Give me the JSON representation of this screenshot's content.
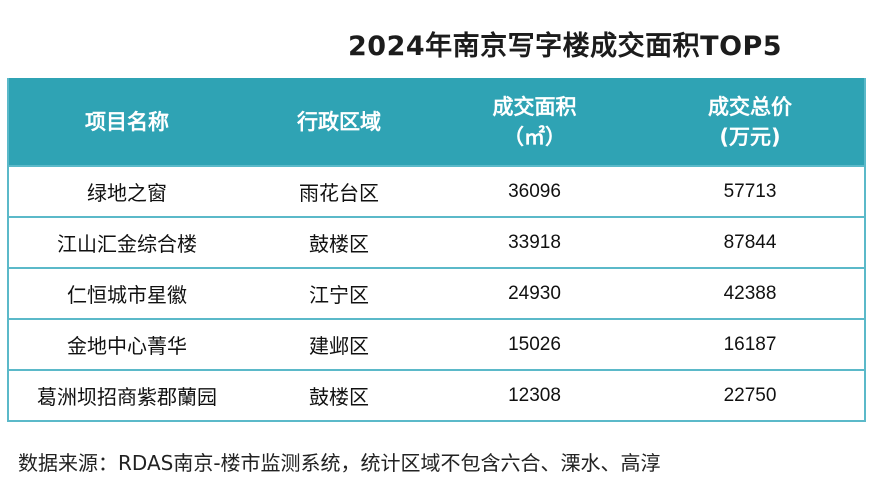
{
  "title": "2024年南京写字楼成交面积TOP5",
  "table": {
    "headers": [
      {
        "line1": "项目名称",
        "line2": ""
      },
      {
        "line1": "行政区域",
        "line2": ""
      },
      {
        "line1": "成交面积",
        "line2": "（㎡）"
      },
      {
        "line1": "成交总价",
        "line2": "(万元)"
      }
    ],
    "rows": [
      {
        "name": "绿地之窗",
        "district": "雨花台区",
        "area": "36096",
        "price": "57713"
      },
      {
        "name": "江山汇金综合楼",
        "district": "鼓楼区",
        "area": "33918",
        "price": "87844"
      },
      {
        "name": "仁恒城市星徽",
        "district": "江宁区",
        "area": "24930",
        "price": "42388"
      },
      {
        "name": "金地中心菁华",
        "district": "建邺区",
        "area": "15026",
        "price": "16187"
      },
      {
        "name": "葛洲坝招商紫郡蘭园",
        "district": "鼓楼区",
        "area": "12308",
        "price": "22750"
      }
    ]
  },
  "footnote": "数据来源：RDAS南京-楼市监测系统，统计区域不包含六合、溧水、高淳",
  "colors": {
    "header_bg": "#2fa3b4",
    "border": "#5bb9c9",
    "header_text": "#ffffff"
  }
}
